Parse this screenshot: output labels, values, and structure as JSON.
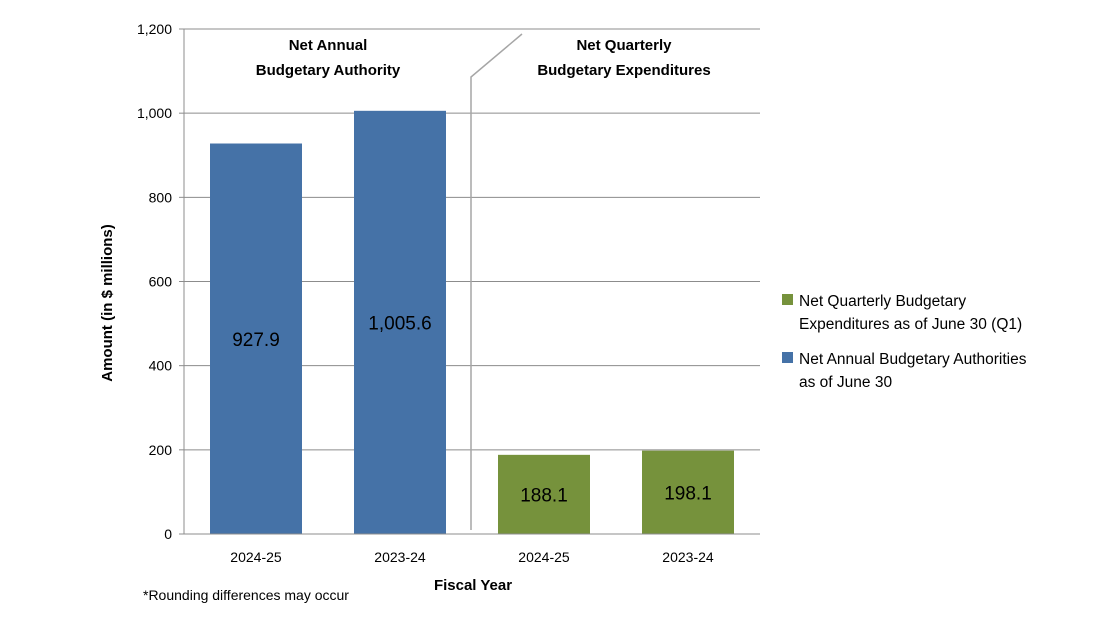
{
  "chart_data": {
    "type": "bar",
    "categories": [
      "2024-25",
      "2023-24",
      "2024-25",
      "2023-24"
    ],
    "series": [
      {
        "name": "Net Annual Budgetary Authorities as of June 30",
        "legend_lines": [
          "Net Annual Budgetary Authorities",
          "as of June 30"
        ],
        "color": "#4572a7",
        "values": [
          927.9,
          1005.6,
          null,
          null
        ],
        "value_labels": [
          "927.9",
          "1,005.6",
          "",
          ""
        ]
      },
      {
        "name": "Net Quarterly Budgetary Expenditures as of June 30 (Q1)",
        "legend_lines": [
          "Net Quarterly Budgetary",
          "Expenditures as of June 30 (Q1)"
        ],
        "color": "#76923c",
        "values": [
          null,
          null,
          188.1,
          198.1
        ],
        "value_labels": [
          "",
          "",
          "188.1",
          "198.1"
        ]
      }
    ],
    "section_titles": [
      [
        "Net Annual",
        "Budgetary Authority"
      ],
      [
        "Net Quarterly",
        "Budgetary Expenditures"
      ]
    ],
    "xlabel": "Fiscal Year",
    "ylabel": "Amount (in $ millions)",
    "ylim": [
      0,
      1200
    ],
    "yticks": [
      0,
      200,
      400,
      600,
      800,
      1000,
      1200
    ],
    "ytick_labels": [
      "0",
      "200",
      "400",
      "600",
      "800",
      "1,000",
      "1,200"
    ],
    "grid": true,
    "legend_placement": "right",
    "legend_order": [
      1,
      0
    ],
    "footnote": "*Rounding differences may occur"
  }
}
